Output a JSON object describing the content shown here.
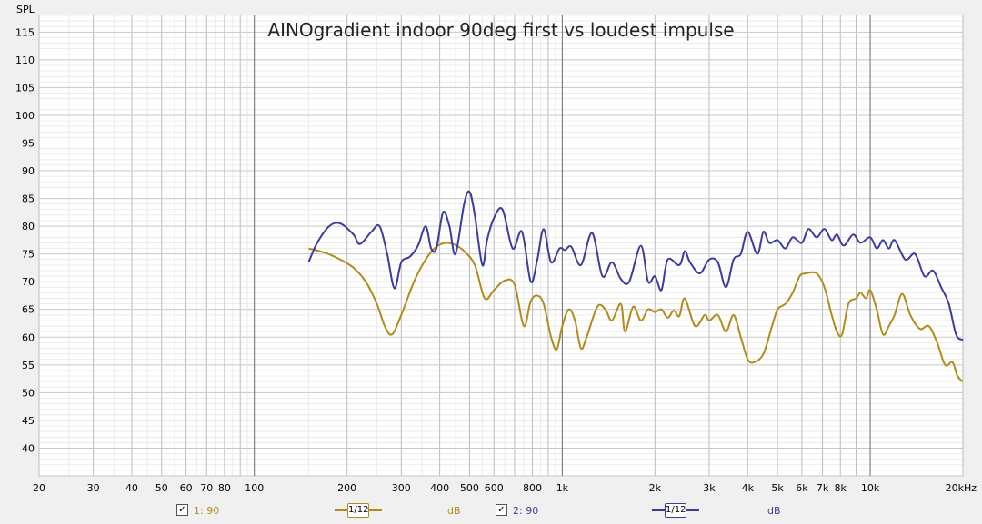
{
  "chart_data": {
    "type": "line",
    "title": "AINOgradient indoor 90deg first vs loudest impulse",
    "ylabel": "SPL",
    "xlabel": "",
    "x_scale": "log",
    "xlim": [
      20,
      20000
    ],
    "ylim": [
      35,
      118
    ],
    "grid": true,
    "y_ticks": [
      40,
      45,
      50,
      55,
      60,
      65,
      70,
      75,
      80,
      85,
      90,
      95,
      100,
      105,
      110,
      115
    ],
    "x_ticks": [
      {
        "v": 20,
        "label": "20"
      },
      {
        "v": 30,
        "label": "30"
      },
      {
        "v": 40,
        "label": "40"
      },
      {
        "v": 50,
        "label": "50"
      },
      {
        "v": 60,
        "label": "60"
      },
      {
        "v": 70,
        "label": "70"
      },
      {
        "v": 80,
        "label": "80"
      },
      {
        "v": 100,
        "label": "100"
      },
      {
        "v": 200,
        "label": "200"
      },
      {
        "v": 300,
        "label": "300"
      },
      {
        "v": 400,
        "label": "400"
      },
      {
        "v": 500,
        "label": "500"
      },
      {
        "v": 600,
        "label": "600"
      },
      {
        "v": 800,
        "label": "800"
      },
      {
        "v": 1000,
        "label": "1k"
      },
      {
        "v": 2000,
        "label": "2k"
      },
      {
        "v": 3000,
        "label": "3k"
      },
      {
        "v": 4000,
        "label": "4k"
      },
      {
        "v": 5000,
        "label": "5k"
      },
      {
        "v": 6000,
        "label": "6k"
      },
      {
        "v": 7000,
        "label": "7k"
      },
      {
        "v": 8000,
        "label": "8k"
      },
      {
        "v": 10000,
        "label": "10k"
      },
      {
        "v": 20000,
        "label": "20kHz"
      }
    ],
    "series": [
      {
        "name": "1: 90",
        "color": "#b08d1a",
        "points": [
          [
            150,
            76
          ],
          [
            170,
            75.2
          ],
          [
            190,
            74
          ],
          [
            210,
            72.5
          ],
          [
            230,
            70
          ],
          [
            250,
            66
          ],
          [
            265,
            62
          ],
          [
            280,
            60.5
          ],
          [
            300,
            64
          ],
          [
            330,
            70
          ],
          [
            360,
            74
          ],
          [
            390,
            76.3
          ],
          [
            420,
            77
          ],
          [
            450,
            76.6
          ],
          [
            480,
            75.5
          ],
          [
            520,
            73
          ],
          [
            560,
            67
          ],
          [
            600,
            68.5
          ],
          [
            650,
            70.2
          ],
          [
            700,
            69.5
          ],
          [
            750,
            62
          ],
          [
            790,
            66.5
          ],
          [
            830,
            67.5
          ],
          [
            870,
            66
          ],
          [
            920,
            60
          ],
          [
            960,
            57.8
          ],
          [
            1000,
            62
          ],
          [
            1050,
            65
          ],
          [
            1100,
            63
          ],
          [
            1150,
            58
          ],
          [
            1200,
            60
          ],
          [
            1300,
            65.5
          ],
          [
            1380,
            65
          ],
          [
            1450,
            63
          ],
          [
            1550,
            66
          ],
          [
            1600,
            61
          ],
          [
            1700,
            65.5
          ],
          [
            1800,
            63
          ],
          [
            1900,
            65
          ],
          [
            2000,
            64.5
          ],
          [
            2100,
            65
          ],
          [
            2200,
            63.5
          ],
          [
            2300,
            64.8
          ],
          [
            2400,
            63.8
          ],
          [
            2500,
            67
          ],
          [
            2700,
            62
          ],
          [
            2900,
            64
          ],
          [
            3000,
            63
          ],
          [
            3200,
            64
          ],
          [
            3400,
            61
          ],
          [
            3600,
            64
          ],
          [
            3800,
            60
          ],
          [
            4000,
            56
          ],
          [
            4200,
            55.5
          ],
          [
            4500,
            57
          ],
          [
            4800,
            62
          ],
          [
            5000,
            65
          ],
          [
            5300,
            66
          ],
          [
            5600,
            68
          ],
          [
            5900,
            71
          ],
          [
            6200,
            71.5
          ],
          [
            6700,
            71.5
          ],
          [
            7100,
            69
          ],
          [
            7500,
            64
          ],
          [
            7800,
            61
          ],
          [
            8100,
            60.5
          ],
          [
            8500,
            66
          ],
          [
            9000,
            67
          ],
          [
            9300,
            68
          ],
          [
            9700,
            67
          ],
          [
            10000,
            68.5
          ],
          [
            10500,
            65
          ],
          [
            11000,
            60.5
          ],
          [
            11500,
            62
          ],
          [
            12000,
            64
          ],
          [
            12700,
            67.8
          ],
          [
            13500,
            64
          ],
          [
            14500,
            61.5
          ],
          [
            15500,
            62
          ],
          [
            16500,
            59
          ],
          [
            17500,
            55
          ],
          [
            18500,
            55.5
          ],
          [
            19200,
            53
          ],
          [
            20000,
            52
          ]
        ]
      },
      {
        "name": "2: 90",
        "color": "#3c3ca0",
        "points": [
          [
            150,
            73.5
          ],
          [
            160,
            77
          ],
          [
            175,
            80
          ],
          [
            190,
            80.5
          ],
          [
            210,
            78.5
          ],
          [
            220,
            76.8
          ],
          [
            240,
            79
          ],
          [
            255,
            80
          ],
          [
            270,
            75
          ],
          [
            285,
            68.8
          ],
          [
            300,
            73.5
          ],
          [
            320,
            74.5
          ],
          [
            340,
            76.5
          ],
          [
            360,
            80
          ],
          [
            375,
            76
          ],
          [
            390,
            76
          ],
          [
            410,
            82.5
          ],
          [
            430,
            80
          ],
          [
            450,
            75
          ],
          [
            480,
            84
          ],
          [
            500,
            86.2
          ],
          [
            520,
            82
          ],
          [
            550,
            73
          ],
          [
            570,
            77.5
          ],
          [
            600,
            81.5
          ],
          [
            640,
            83
          ],
          [
            690,
            76
          ],
          [
            740,
            79
          ],
          [
            790,
            70
          ],
          [
            830,
            74
          ],
          [
            870,
            79.5
          ],
          [
            920,
            73.5
          ],
          [
            980,
            76
          ],
          [
            1020,
            75.7
          ],
          [
            1070,
            76.3
          ],
          [
            1150,
            73
          ],
          [
            1250,
            78.8
          ],
          [
            1350,
            71
          ],
          [
            1450,
            73.5
          ],
          [
            1550,
            70.5
          ],
          [
            1650,
            70
          ],
          [
            1800,
            76.5
          ],
          [
            1900,
            70
          ],
          [
            2000,
            71
          ],
          [
            2100,
            68.5
          ],
          [
            2200,
            74
          ],
          [
            2400,
            73
          ],
          [
            2500,
            75.5
          ],
          [
            2600,
            73.5
          ],
          [
            2800,
            71.5
          ],
          [
            3000,
            74
          ],
          [
            3200,
            73.5
          ],
          [
            3400,
            69
          ],
          [
            3600,
            74
          ],
          [
            3800,
            75
          ],
          [
            4000,
            79
          ],
          [
            4300,
            75
          ],
          [
            4500,
            79
          ],
          [
            4700,
            77
          ],
          [
            5000,
            77.5
          ],
          [
            5300,
            76
          ],
          [
            5600,
            78
          ],
          [
            6000,
            77
          ],
          [
            6300,
            79.5
          ],
          [
            6700,
            78
          ],
          [
            7100,
            79.5
          ],
          [
            7500,
            77.5
          ],
          [
            7800,
            78.5
          ],
          [
            8200,
            76.5
          ],
          [
            8800,
            78.5
          ],
          [
            9300,
            77
          ],
          [
            10000,
            78
          ],
          [
            10500,
            76
          ],
          [
            11000,
            77.5
          ],
          [
            11500,
            76
          ],
          [
            12000,
            77.5
          ],
          [
            13000,
            74
          ],
          [
            14000,
            75
          ],
          [
            15000,
            71
          ],
          [
            16000,
            72
          ],
          [
            17000,
            69
          ],
          [
            18000,
            66
          ],
          [
            19000,
            60.5
          ],
          [
            20000,
            59.5
          ]
        ]
      }
    ]
  },
  "legend": [
    {
      "label": "1: 90",
      "checked_glyph": "✓",
      "smoothing": "1/12",
      "unit": "dB",
      "color": "#b08d1a"
    },
    {
      "label": "2: 90",
      "checked_glyph": "✓",
      "smoothing": "1/12",
      "unit": "dB",
      "color": "#3c3ca0"
    }
  ]
}
